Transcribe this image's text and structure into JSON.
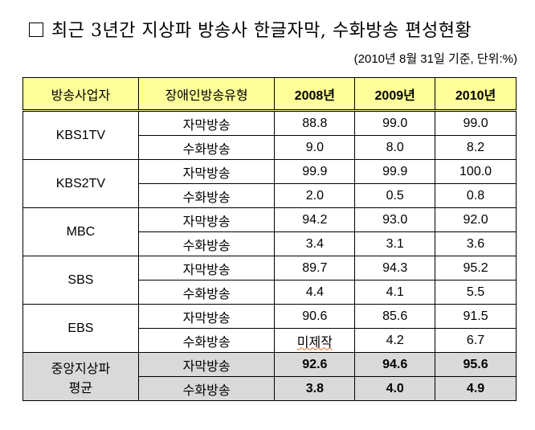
{
  "title": "최근 3년간 지상파 방송사 한글자막, 수화방송 편성현황",
  "note": "(2010년 8월 31일 기준, 단위:%)",
  "table": {
    "headers": [
      "방송사업자",
      "장애인방송유형",
      "2008년",
      "2009년",
      "2010년"
    ],
    "groups": [
      {
        "name": "KBS1TV",
        "rows": [
          {
            "type": "자막방송",
            "values": [
              "88.8",
              "99.0",
              "99.0"
            ]
          },
          {
            "type": "수화방송",
            "values": [
              "9.0",
              "8.0",
              "8.2"
            ]
          }
        ]
      },
      {
        "name": "KBS2TV",
        "rows": [
          {
            "type": "자막방송",
            "values": [
              "99.9",
              "99.9",
              "100.0"
            ]
          },
          {
            "type": "수화방송",
            "values": [
              "2.0",
              "0.5",
              "0.8"
            ]
          }
        ]
      },
      {
        "name": "MBC",
        "rows": [
          {
            "type": "자막방송",
            "values": [
              "94.2",
              "93.0",
              "92.0"
            ]
          },
          {
            "type": "수화방송",
            "values": [
              "3.4",
              "3.1",
              "3.6"
            ]
          }
        ]
      },
      {
        "name": "SBS",
        "rows": [
          {
            "type": "자막방송",
            "values": [
              "89.7",
              "94.3",
              "95.2"
            ]
          },
          {
            "type": "수화방송",
            "values": [
              "4.4",
              "4.1",
              "5.5"
            ]
          }
        ]
      },
      {
        "name": "EBS",
        "rows": [
          {
            "type": "자막방송",
            "values": [
              "90.6",
              "85.6",
              "91.5"
            ]
          },
          {
            "type": "수화방송",
            "values": [
              "미제작",
              "4.2",
              "6.7"
            ]
          }
        ]
      }
    ],
    "average": {
      "name_line1": "중앙지상파",
      "name_line2": "평균",
      "rows": [
        {
          "type": "자막방송",
          "values": [
            "92.6",
            "94.6",
            "95.6"
          ]
        },
        {
          "type": "수화방송",
          "values": [
            "3.8",
            "4.0",
            "4.9"
          ]
        }
      ]
    }
  }
}
